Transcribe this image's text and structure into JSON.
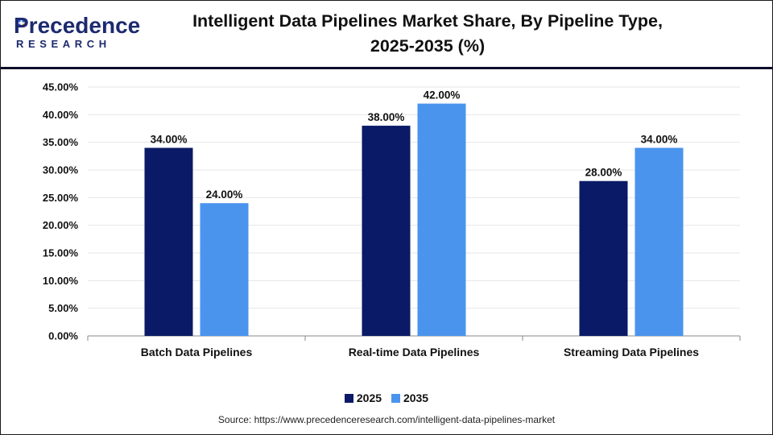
{
  "header": {
    "logo_text": "Precedence",
    "logo_subtext": "RESEARCH",
    "title_line1": "Intelligent Data Pipelines Market Share, By Pipeline Type,",
    "title_line2": "2025-2035 (%)"
  },
  "colors": {
    "series_2025": "#0b1a66",
    "series_2035": "#4a94ee",
    "logo": "#1d2a6e",
    "logo_dot_blue": "#2f6fe0",
    "logo_dot_orange": "#f39a1e"
  },
  "chart_data": {
    "type": "bar",
    "title": "Intelligent Data Pipelines Market Share, By Pipeline Type, 2025-2035 (%)",
    "categories": [
      "Batch Data Pipelines",
      "Real-time Data Pipelines",
      "Streaming Data Pipelines"
    ],
    "series": [
      {
        "name": "2025",
        "values": [
          34.0,
          38.0,
          28.0
        ],
        "labels": [
          "34.00%",
          "38.00%",
          "28.00%"
        ]
      },
      {
        "name": "2035",
        "values": [
          24.0,
          42.0,
          34.0
        ],
        "labels": [
          "24.00%",
          "42.00%",
          "34.00%"
        ]
      }
    ],
    "ylim": [
      0,
      45
    ],
    "yticks": [
      0,
      5,
      10,
      15,
      20,
      25,
      30,
      35,
      40,
      45
    ],
    "ytick_labels": [
      "0.00%",
      "5.00%",
      "10.00%",
      "15.00%",
      "20.00%",
      "25.00%",
      "30.00%",
      "35.00%",
      "40.00%",
      "45.00%"
    ],
    "xlabel": "",
    "ylabel": "",
    "grid": true,
    "legend_position": "bottom-center"
  },
  "source": "Source: https://www.precedenceresearch.com/intelligent-data-pipelines-market"
}
